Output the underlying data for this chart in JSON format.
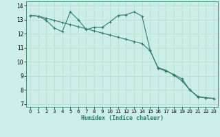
{
  "title": "",
  "xlabel": "Humidex (Indice chaleur)",
  "background_color": "#cceee8",
  "grid_color": "#bbddcc",
  "line_color": "#2d7a6e",
  "xlim": [
    -0.5,
    23.5
  ],
  "ylim": [
    6.8,
    14.3
  ],
  "xticks": [
    0,
    1,
    2,
    3,
    4,
    5,
    6,
    7,
    8,
    9,
    10,
    11,
    12,
    13,
    14,
    15,
    16,
    17,
    18,
    19,
    20,
    21,
    22,
    23
  ],
  "yticks": [
    7,
    8,
    9,
    10,
    11,
    12,
    13,
    14
  ],
  "line1_x": [
    0,
    1,
    2,
    3,
    4,
    5,
    6,
    7,
    8,
    9,
    10,
    11,
    12,
    13,
    14,
    15,
    16,
    17,
    18,
    19,
    20,
    21,
    22,
    23
  ],
  "line1_y": [
    13.3,
    13.25,
    12.95,
    12.4,
    12.15,
    13.55,
    13.0,
    12.3,
    12.45,
    12.45,
    12.85,
    13.3,
    13.35,
    13.55,
    13.25,
    10.85,
    9.55,
    9.35,
    9.1,
    8.8,
    8.0,
    7.5,
    7.45,
    7.4
  ],
  "line2_x": [
    0,
    1,
    2,
    3,
    4,
    5,
    6,
    7,
    8,
    9,
    10,
    11,
    12,
    13,
    14,
    15,
    16,
    17,
    18,
    19,
    20,
    21,
    22,
    23
  ],
  "line2_y": [
    13.3,
    13.25,
    13.1,
    12.95,
    12.8,
    12.65,
    12.5,
    12.35,
    12.2,
    12.05,
    11.9,
    11.75,
    11.6,
    11.45,
    11.3,
    10.8,
    9.6,
    9.4,
    9.05,
    8.65,
    8.0,
    7.55,
    7.45,
    7.4
  ]
}
